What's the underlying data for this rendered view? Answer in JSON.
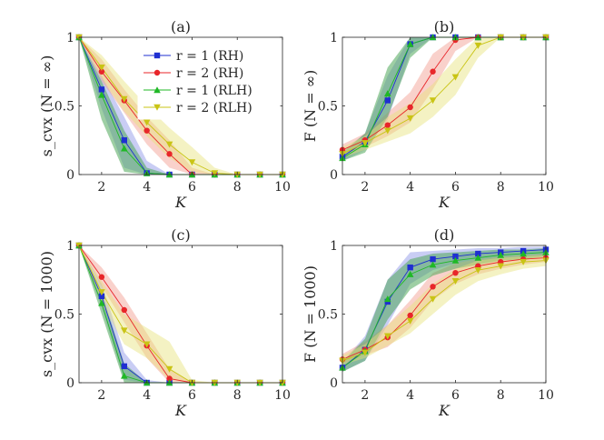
{
  "colors": {
    "RH1": "#1f2fd1",
    "RH2": "#e8262a",
    "RLH1": "#1fb826",
    "RLH2": "#c9c415",
    "band_RH1": "#8891e6",
    "band_RH2": "#f29a8c",
    "band_RLH1": "#4fa85a",
    "band_RLH2": "#e6e27a"
  },
  "legend": {
    "items": [
      {
        "label": "r = 1 (RH)",
        "color_key": "RH1",
        "marker": "square"
      },
      {
        "label": "r = 2 (RH)",
        "color_key": "RH2",
        "marker": "circle"
      },
      {
        "label": "r = 1 (RLH)",
        "color_key": "RLH1",
        "marker": "triangle-up"
      },
      {
        "label": "r = 2 (RLH)",
        "color_key": "RLH2",
        "marker": "triangle-down"
      }
    ],
    "placement": "top-right of panel (a)"
  },
  "chart_data": [
    {
      "type": "line",
      "title": "(a)",
      "xlabel": "K",
      "ylabel": "s_cvx (N = ∞)",
      "xlim": [
        1,
        10
      ],
      "ylim": [
        0,
        1
      ],
      "xticks": [
        2,
        4,
        6,
        8,
        10
      ],
      "yticks": [
        0,
        0.5,
        1
      ],
      "ytick_labels": [
        "0",
        "0.5",
        "1"
      ],
      "x": [
        1,
        2,
        3,
        4,
        5,
        6,
        7,
        8,
        9,
        10
      ],
      "series": [
        {
          "name": "r = 1 (RH)",
          "color_key": "RH1",
          "band_key": "band_RH1",
          "marker": "square",
          "values": [
            1,
            0.62,
            0.25,
            0.01,
            0,
            0,
            0,
            0,
            0,
            0
          ],
          "lower": [
            1,
            0.48,
            0.05,
            0,
            0,
            0,
            0,
            0,
            0,
            0
          ],
          "upper": [
            1,
            0.72,
            0.42,
            0.1,
            0,
            0,
            0,
            0,
            0,
            0
          ]
        },
        {
          "name": "r = 2 (RH)",
          "color_key": "RH2",
          "band_key": "band_RH2",
          "marker": "circle",
          "values": [
            1,
            0.75,
            0.54,
            0.32,
            0.15,
            0,
            0,
            0,
            0,
            0
          ],
          "lower": [
            1,
            0.68,
            0.45,
            0.22,
            0.05,
            0,
            0,
            0,
            0,
            0
          ],
          "upper": [
            1,
            0.84,
            0.62,
            0.42,
            0.25,
            0.05,
            0,
            0,
            0,
            0
          ]
        },
        {
          "name": "r = 1 (RLH)",
          "color_key": "RLH1",
          "band_key": "band_RLH1",
          "marker": "triangle-up",
          "values": [
            1,
            0.58,
            0.19,
            0.01,
            0,
            0,
            0,
            0,
            0,
            0
          ],
          "lower": [
            1,
            0.4,
            0.02,
            0,
            0,
            0,
            0,
            0,
            0,
            0
          ],
          "upper": [
            1,
            0.68,
            0.32,
            0.05,
            0,
            0,
            0,
            0,
            0,
            0
          ]
        },
        {
          "name": "r = 2 (RLH)",
          "color_key": "RLH2",
          "band_key": "band_RLH2",
          "marker": "triangle-down",
          "values": [
            1,
            0.78,
            0.55,
            0.38,
            0.22,
            0.09,
            0.01,
            0,
            0,
            0
          ],
          "lower": [
            1,
            0.7,
            0.46,
            0.28,
            0.12,
            0.02,
            0,
            0,
            0,
            0
          ],
          "upper": [
            1,
            0.87,
            0.68,
            0.5,
            0.34,
            0.2,
            0.05,
            0,
            0,
            0
          ]
        }
      ]
    },
    {
      "type": "line",
      "title": "(b)",
      "xlabel": "K",
      "ylabel": "F (N = ∞)",
      "xlim": [
        1,
        10
      ],
      "ylim": [
        0,
        1
      ],
      "xticks": [
        2,
        4,
        6,
        8,
        10
      ],
      "yticks": [
        0,
        0.5,
        1
      ],
      "ytick_labels": [
        "0",
        "0.5",
        "1"
      ],
      "x": [
        1,
        2,
        3,
        4,
        5,
        6,
        7,
        8,
        9,
        10
      ],
      "series": [
        {
          "name": "r = 1 (RH)",
          "color_key": "RH1",
          "band_key": "band_RH1",
          "marker": "square",
          "values": [
            0.13,
            0.24,
            0.54,
            0.95,
            1,
            1,
            1,
            1,
            1,
            1
          ],
          "lower": [
            0.1,
            0.18,
            0.4,
            0.88,
            1,
            1,
            1,
            1,
            1,
            1
          ],
          "upper": [
            0.17,
            0.3,
            0.72,
            1,
            1,
            1,
            1,
            1,
            1,
            1
          ]
        },
        {
          "name": "r = 2 (RH)",
          "color_key": "RH2",
          "band_key": "band_RH2",
          "marker": "circle",
          "values": [
            0.18,
            0.25,
            0.36,
            0.49,
            0.75,
            0.98,
            1,
            1,
            1,
            1
          ],
          "lower": [
            0.15,
            0.2,
            0.28,
            0.38,
            0.62,
            0.9,
            1,
            1,
            1,
            1
          ],
          "upper": [
            0.22,
            0.3,
            0.45,
            0.6,
            0.88,
            1,
            1,
            1,
            1,
            1
          ]
        },
        {
          "name": "r = 1 (RLH)",
          "color_key": "RLH1",
          "band_key": "band_RLH1",
          "marker": "triangle-up",
          "values": [
            0.12,
            0.22,
            0.59,
            0.95,
            1,
            1,
            1,
            1,
            1,
            1
          ],
          "lower": [
            0.1,
            0.16,
            0.42,
            0.85,
            1,
            1,
            1,
            1,
            1,
            1
          ],
          "upper": [
            0.16,
            0.3,
            0.78,
            1,
            1,
            1,
            1,
            1,
            1,
            1
          ]
        },
        {
          "name": "r = 2 (RLH)",
          "color_key": "RLH2",
          "band_key": "band_RLH2",
          "marker": "triangle-down",
          "values": [
            0.15,
            0.23,
            0.32,
            0.41,
            0.54,
            0.71,
            0.94,
            1,
            1,
            1
          ],
          "lower": [
            0.12,
            0.18,
            0.24,
            0.3,
            0.42,
            0.58,
            0.85,
            1,
            1,
            1
          ],
          "upper": [
            0.2,
            0.28,
            0.42,
            0.52,
            0.66,
            0.84,
            1,
            1,
            1,
            1
          ]
        }
      ]
    },
    {
      "type": "line",
      "title": "(c)",
      "xlabel": "K",
      "ylabel": "s_cvx (N = 1000)",
      "xlim": [
        1,
        10
      ],
      "ylim": [
        0,
        1
      ],
      "xticks": [
        2,
        4,
        6,
        8,
        10
      ],
      "yticks": [
        0,
        0.5,
        1
      ],
      "ytick_labels": [
        "0",
        "0.5",
        "1"
      ],
      "x": [
        1,
        2,
        3,
        4,
        5,
        6,
        7,
        8,
        9,
        10
      ],
      "series": [
        {
          "name": "r = 1 (RH)",
          "color_key": "RH1",
          "band_key": "band_RH1",
          "marker": "square",
          "values": [
            1,
            0.63,
            0.12,
            0,
            0,
            0,
            0,
            0,
            0,
            0
          ],
          "lower": [
            1,
            0.55,
            0.02,
            0,
            0,
            0,
            0,
            0,
            0,
            0
          ],
          "upper": [
            1,
            0.72,
            0.22,
            0.02,
            0,
            0,
            0,
            0,
            0,
            0
          ]
        },
        {
          "name": "r = 2 (RH)",
          "color_key": "RH2",
          "band_key": "band_RH2",
          "marker": "circle",
          "values": [
            1,
            0.77,
            0.53,
            0.27,
            0.03,
            0,
            0,
            0,
            0,
            0
          ],
          "lower": [
            1,
            0.7,
            0.44,
            0.18,
            0,
            0,
            0,
            0,
            0,
            0
          ],
          "upper": [
            1,
            0.84,
            0.62,
            0.36,
            0.1,
            0,
            0,
            0,
            0,
            0
          ]
        },
        {
          "name": "r = 1 (RLH)",
          "color_key": "RLH1",
          "band_key": "band_RLH1",
          "marker": "triangle-up",
          "values": [
            1,
            0.58,
            0.05,
            0,
            0,
            0,
            0,
            0,
            0,
            0
          ],
          "lower": [
            1,
            0.5,
            0,
            0,
            0,
            0,
            0,
            0,
            0,
            0
          ],
          "upper": [
            1,
            0.66,
            0.14,
            0,
            0,
            0,
            0,
            0,
            0,
            0
          ]
        },
        {
          "name": "r = 2 (RLH)",
          "color_key": "RLH2",
          "band_key": "band_RLH2",
          "marker": "triangle-down",
          "values": [
            1,
            0.66,
            0.38,
            0.28,
            0.1,
            0,
            0,
            0,
            0,
            0
          ],
          "lower": [
            1,
            0.58,
            0.28,
            0.18,
            0.02,
            0,
            0,
            0,
            0,
            0
          ],
          "upper": [
            1,
            0.74,
            0.5,
            0.4,
            0.3,
            0.02,
            0,
            0,
            0,
            0
          ]
        }
      ]
    },
    {
      "type": "line",
      "title": "(d)",
      "xlabel": "K",
      "ylabel": "F (N = 1000)",
      "xlim": [
        1,
        10
      ],
      "ylim": [
        0,
        1
      ],
      "xticks": [
        2,
        4,
        6,
        8,
        10
      ],
      "yticks": [
        0,
        0.5,
        1
      ],
      "ytick_labels": [
        "0",
        "0.5",
        "1"
      ],
      "x": [
        1,
        2,
        3,
        4,
        5,
        6,
        7,
        8,
        9,
        10
      ],
      "series": [
        {
          "name": "r = 1 (RH)",
          "color_key": "RH1",
          "band_key": "band_RH1",
          "marker": "square",
          "values": [
            0.11,
            0.24,
            0.59,
            0.84,
            0.9,
            0.92,
            0.94,
            0.95,
            0.96,
            0.97
          ],
          "lower": [
            0.08,
            0.16,
            0.42,
            0.72,
            0.82,
            0.87,
            0.9,
            0.92,
            0.93,
            0.94
          ],
          "upper": [
            0.15,
            0.34,
            0.75,
            0.95,
            0.96,
            0.97,
            0.98,
            0.98,
            0.99,
            0.99
          ]
        },
        {
          "name": "r = 2 (RH)",
          "color_key": "RH2",
          "band_key": "band_RH2",
          "marker": "circle",
          "values": [
            0.17,
            0.24,
            0.33,
            0.49,
            0.7,
            0.8,
            0.85,
            0.88,
            0.9,
            0.91
          ],
          "lower": [
            0.14,
            0.2,
            0.26,
            0.4,
            0.6,
            0.72,
            0.79,
            0.83,
            0.86,
            0.88
          ],
          "upper": [
            0.21,
            0.3,
            0.42,
            0.6,
            0.8,
            0.87,
            0.9,
            0.92,
            0.93,
            0.94
          ]
        },
        {
          "name": "r = 1 (RLH)",
          "color_key": "RLH1",
          "band_key": "band_RLH1",
          "marker": "triangle-up",
          "values": [
            0.11,
            0.23,
            0.61,
            0.79,
            0.86,
            0.89,
            0.91,
            0.93,
            0.94,
            0.95
          ],
          "lower": [
            0.08,
            0.16,
            0.46,
            0.68,
            0.78,
            0.83,
            0.86,
            0.89,
            0.9,
            0.92
          ],
          "upper": [
            0.15,
            0.32,
            0.75,
            0.9,
            0.94,
            0.95,
            0.96,
            0.97,
            0.97,
            0.98
          ]
        },
        {
          "name": "r = 2 (RLH)",
          "color_key": "RLH2",
          "band_key": "band_RLH2",
          "marker": "triangle-down",
          "values": [
            0.16,
            0.22,
            0.34,
            0.45,
            0.61,
            0.74,
            0.82,
            0.85,
            0.88,
            0.89
          ],
          "lower": [
            0.13,
            0.18,
            0.27,
            0.36,
            0.5,
            0.64,
            0.74,
            0.79,
            0.83,
            0.85
          ],
          "upper": [
            0.2,
            0.28,
            0.42,
            0.56,
            0.72,
            0.83,
            0.89,
            0.91,
            0.92,
            0.93
          ]
        }
      ]
    }
  ]
}
